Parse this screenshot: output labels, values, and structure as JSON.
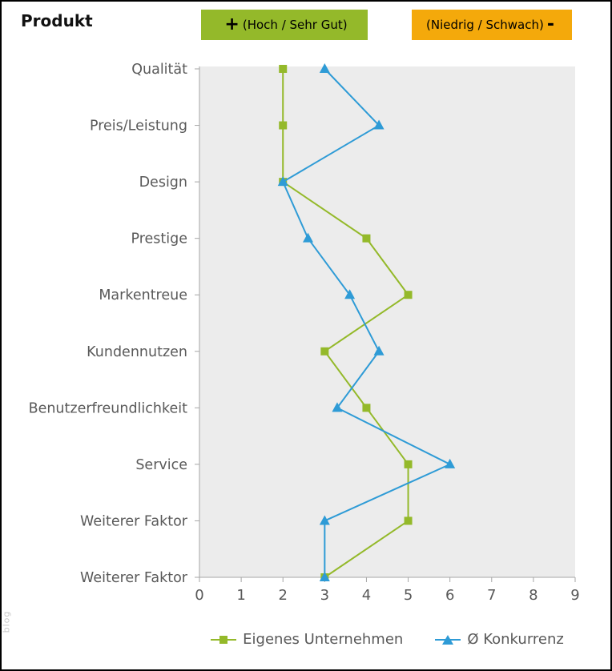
{
  "page": {
    "title": "Produkt",
    "watermark": "blog"
  },
  "badges": {
    "positive": {
      "sign": "+",
      "label": "(Hoch / Sehr Gut)",
      "color": "#94b92a"
    },
    "negative": {
      "label": "(Niedrig / Schwach)",
      "sign": "-",
      "color": "#f4a90b"
    }
  },
  "chart_data": {
    "type": "line",
    "title": "Produkt",
    "orientation": "categories-on-y-axis",
    "categories": [
      "Qualität",
      "Preis/Leistung",
      "Design",
      "Prestige",
      "Markentreue",
      "Kundennutzen",
      "Benutzerfreundlichkeit",
      "Service",
      "Weiterer Faktor",
      "Weiterer Faktor"
    ],
    "series": [
      {
        "name": "Eigenes Unternehmen",
        "marker": "square",
        "color": "#94b92a",
        "values": [
          2,
          2,
          2,
          4,
          5,
          3,
          4,
          5,
          5,
          3
        ]
      },
      {
        "name": "Ø Konkurrenz",
        "marker": "triangle",
        "color": "#2e9bd6",
        "values": [
          3,
          4.3,
          2,
          2.6,
          3.6,
          4.3,
          3.3,
          6,
          3,
          3
        ]
      }
    ],
    "xlim": [
      0,
      9
    ],
    "x_ticks": [
      0,
      1,
      2,
      3,
      4,
      5,
      6,
      7,
      8,
      9
    ],
    "plot_bg": "#ececec",
    "axis_color": "#a6a6a6",
    "label_color": "#595959",
    "grid": false,
    "legend_position": "bottom"
  }
}
